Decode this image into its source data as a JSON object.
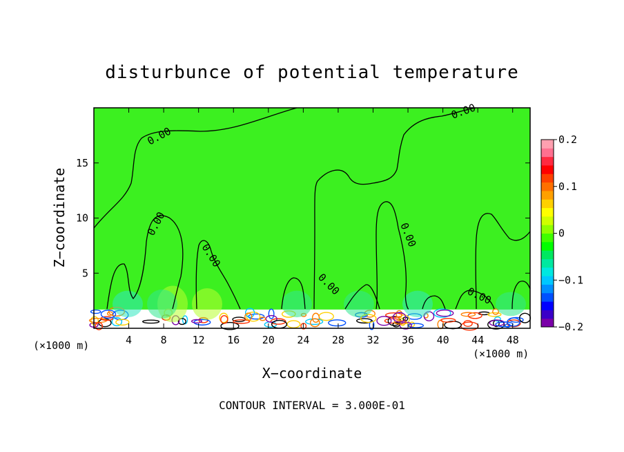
{
  "chart_data": {
    "type": "heatmap",
    "title": "disturbunce of potential temperature",
    "xlabel": "X−coordinate",
    "ylabel": "Z−coordinate",
    "x_unit_left": "(×1000 m)",
    "x_unit_right": "(×1000 m)",
    "xlim": [
      0,
      50
    ],
    "ylim": [
      0,
      20
    ],
    "x_ticks": [
      4,
      8,
      12,
      16,
      20,
      24,
      28,
      32,
      36,
      40,
      44,
      48
    ],
    "y_ticks": [
      5,
      10,
      15
    ],
    "colorbar": {
      "range": [
        -0.2,
        0.2
      ],
      "tick_values": [
        0.2,
        0.1,
        0,
        -0.1,
        -0.2
      ],
      "tick_labels": [
        "0.2",
        "0.1",
        "0",
        "−0.1",
        "−0.2"
      ],
      "colors": [
        "#7a00a8",
        "#3a00c8",
        "#0000ff",
        "#0050ff",
        "#0090ff",
        "#00c8ff",
        "#00e8e0",
        "#00e8a0",
        "#00e860",
        "#00ff00",
        "#40ff00",
        "#90ff00",
        "#d0ff00",
        "#ffff00",
        "#ffd000",
        "#ffa000",
        "#ff7000",
        "#ff4000",
        "#ff0000",
        "#ff2a40",
        "#ff7090",
        "#ffa0b0"
      ]
    },
    "background_color": "#3cf020",
    "contour_labels": [
      "0.00",
      "0.00",
      "0.00",
      "0.00",
      "0.00",
      "0.00",
      "0.00"
    ],
    "footer": "CONTOUR INTERVAL = 3.000E-01",
    "grid": false
  }
}
